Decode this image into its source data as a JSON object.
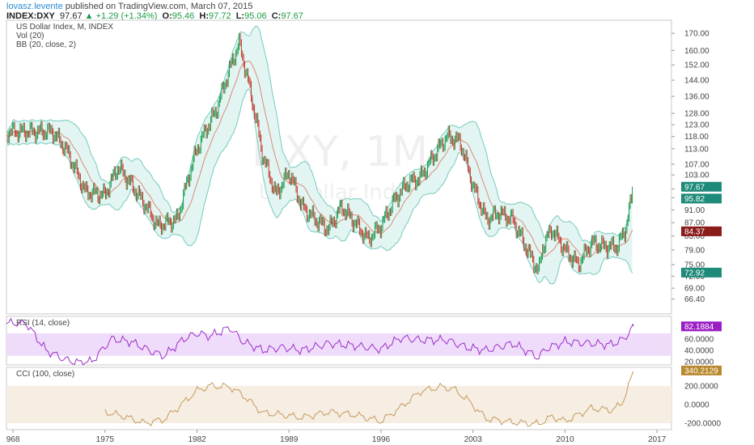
{
  "header": {
    "author": "lovasz.levente",
    "published_text": "published on TradingView.com, March 07, 2015",
    "symbol": "INDEX:DXY",
    "last": "97.67",
    "change": "▲ +1.29 (+1.34%)",
    "o_label": "O:",
    "o_value": "95.46",
    "h_label": "H:",
    "h_value": "97.72",
    "l_label": "L:",
    "l_value": "95.06",
    "c_label": "C:",
    "c_value": "97.67"
  },
  "watermark": {
    "ticker": "DXY, 1M",
    "name": "US Dollar Index"
  },
  "colors": {
    "up": "#1b9c4e",
    "down": "#c0392b",
    "band": "#7fcfc4",
    "band_fill": "#e3f5f2",
    "ma": "#d98c7a",
    "rsi": "#9b30c8",
    "rsi_fill": "#efdcfa",
    "cci": "#c49a5e",
    "cci_fill": "#f6eee2",
    "badge_teal": "#1e8a7a",
    "badge_red": "#8b1c1c",
    "badge_purple": "#9b1ec4",
    "badge_brown": "#b8892e"
  },
  "chart_data": [
    {
      "type": "line",
      "panel": "price",
      "legend": [
        "US Dollar Index, M, INDEX",
        "Vol (20)",
        "BB (20, close, 2)"
      ],
      "x_ticks": [
        "968",
        "1975",
        "1982",
        "1989",
        "1996",
        "2003",
        "2010",
        "2017"
      ],
      "y_ticks": [
        "170.00",
        "160.00",
        "152.00",
        "144.00",
        "136.00",
        "128.00",
        "123.00",
        "118.00",
        "113.00",
        "107.00",
        "103.00",
        "98.00",
        "95.00",
        "91.00",
        "87.00",
        "83.00",
        "79.00",
        "75.00",
        "72.00",
        "69.00",
        "66.40"
      ],
      "ylim": [
        63,
        178
      ],
      "log_scale": true,
      "x": [
        1967.5,
        1971,
        1972,
        1973.5,
        1975,
        1976,
        1978,
        1979,
        1980.5,
        1982,
        1983.5,
        1985.2,
        1986,
        1987,
        1988,
        1989,
        1990,
        1991,
        1992,
        1993,
        1995,
        1996,
        1997,
        1998,
        1999,
        2000,
        2001,
        2002,
        2003,
        2004,
        2005,
        2006,
        2007,
        2008,
        2008.3,
        2009,
        2010,
        2011,
        2012,
        2013,
        2014,
        2014.6,
        2015.2
      ],
      "series": [
        {
          "name": "US Dollar Index",
          "values": [
            120,
            120,
            113,
            97,
            96,
            106,
            93,
            86,
            88,
            113,
            130,
            164,
            140,
            110,
            96,
            104,
            92,
            88,
            85,
            92,
            82,
            86,
            94,
            100,
            102,
            110,
            118,
            116,
            99,
            88,
            90,
            88,
            80,
            73,
            80,
            85,
            79,
            75,
            81,
            80,
            80,
            85,
            97.67
          ]
        }
      ],
      "last_value_label": "97.67",
      "extra_labels": [
        "95.82",
        "84.37",
        "72.92"
      ]
    },
    {
      "type": "line",
      "panel": "rsi",
      "legend": "RSI (14, close)",
      "y_ticks": [
        "60.0000",
        "40.0000",
        "20.0000"
      ],
      "ylim": [
        14,
        100
      ],
      "band": [
        30,
        70
      ],
      "x": [
        1967.5,
        1969,
        1970.5,
        1972,
        1973,
        1974,
        1975.5,
        1977,
        1978.5,
        1979.5,
        1981,
        1982,
        1983,
        1984.5,
        1985.5,
        1987,
        1988.5,
        1990,
        1992,
        1994,
        1996,
        1997.5,
        1999,
        2001,
        2002.5,
        2004,
        2006,
        2008,
        2008.5,
        2010,
        2012,
        2013.5,
        2014.5,
        2015.2
      ],
      "values": [
        88,
        88,
        40,
        23,
        18,
        20,
        60,
        55,
        38,
        30,
        60,
        70,
        65,
        80,
        55,
        40,
        45,
        40,
        52,
        48,
        42,
        62,
        58,
        58,
        45,
        40,
        52,
        27,
        42,
        55,
        52,
        50,
        60,
        82.1884
      ],
      "last_value_label": "82.1884"
    },
    {
      "type": "line",
      "panel": "cci",
      "legend": "CCI (100, close)",
      "y_ticks": [
        "200.0000",
        "0.0000",
        "-200.0000"
      ],
      "ylim": [
        -270,
        400
      ],
      "band": [
        -200,
        200
      ],
      "x": [
        1975,
        1976.5,
        1978,
        1979.5,
        1980.5,
        1982,
        1983,
        1984.5,
        1985.5,
        1987,
        1988.5,
        1990,
        1992,
        1994,
        1996,
        1997.5,
        1999,
        2000.5,
        2001.5,
        2002.5,
        2004,
        2006,
        2008,
        2009,
        2010,
        2012,
        2013.5,
        2014.3,
        2015.2
      ],
      "values": [
        -80,
        -130,
        -200,
        -160,
        -40,
        150,
        200,
        190,
        100,
        -90,
        -110,
        -140,
        -80,
        -110,
        -180,
        -30,
        140,
        190,
        170,
        60,
        -150,
        -190,
        -210,
        -130,
        -180,
        -40,
        -60,
        0,
        340.2129
      ],
      "last_value_label": "340.2129"
    }
  ]
}
